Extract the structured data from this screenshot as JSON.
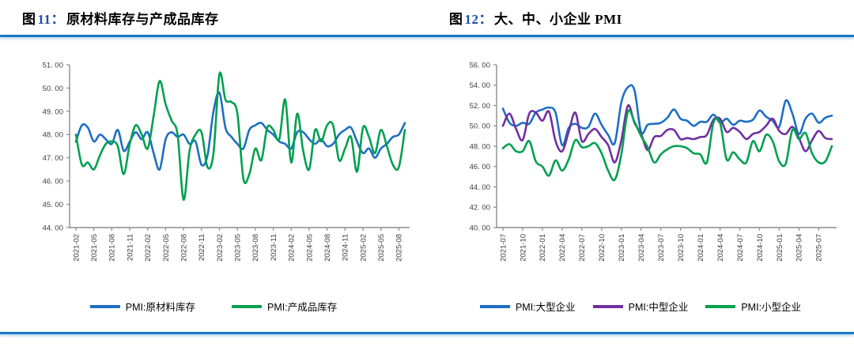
{
  "accent": {
    "divider_rule_color": "#1779c4",
    "title_number_color": "#1c4fa0"
  },
  "figures": [
    {
      "title_fig": "图",
      "title_num": "11：",
      "title_text": "原材料库存与产成品库存"
    },
    {
      "title_fig": "图",
      "title_num": "12：",
      "title_text": "大、中、小企业 PMI"
    }
  ],
  "chart_data": [
    {
      "type": "line",
      "title": "图 11：原材料库存与产成品库存",
      "grid": false,
      "legend_position": "bottom",
      "ylim": [
        44,
        51
      ],
      "y_ticks": [
        51,
        50,
        49,
        48,
        47,
        46,
        45,
        44
      ],
      "y_tick_labels": [
        "51. 00",
        "50. 00",
        "49. 00",
        "48. 00",
        "47. 00",
        "46. 00",
        "45. 00",
        "44. 00"
      ],
      "x_tick_every": 3,
      "x": [
        "2021-02",
        "2021-03",
        "2021-04",
        "2021-05",
        "2021-06",
        "2021-07",
        "2021-08",
        "2021-09",
        "2021-10",
        "2021-11",
        "2021-12",
        "2022-01",
        "2022-02",
        "2022-03",
        "2022-04",
        "2022-05",
        "2022-06",
        "2022-07",
        "2022-08",
        "2022-09",
        "2022-10",
        "2022-11",
        "2022-12",
        "2023-01",
        "2023-02",
        "2023-03",
        "2023-04",
        "2023-05",
        "2023-06",
        "2023-07",
        "2023-08",
        "2023-09",
        "2023-10",
        "2023-11",
        "2023-12",
        "2024-01",
        "2024-02",
        "2024-03",
        "2024-04",
        "2024-05",
        "2024-06",
        "2024-07",
        "2024-08",
        "2024-09",
        "2024-10",
        "2024-11",
        "2024-12",
        "2025-01",
        "2025-02",
        "2025-03",
        "2025-04",
        "2025-05",
        "2025-06",
        "2025-07",
        "2025-08",
        "2025-09"
      ],
      "series": [
        {
          "name": "PMI:原材料库存",
          "color": "#1c6fc4",
          "values": [
            47.7,
            48.4,
            48.3,
            47.7,
            48.0,
            47.8,
            47.6,
            48.2,
            47.3,
            47.7,
            48.1,
            47.8,
            48.1,
            47.2,
            46.5,
            47.8,
            48.1,
            47.9,
            48.0,
            47.6,
            47.7,
            46.7,
            47.1,
            49.0,
            49.8,
            48.3,
            47.9,
            47.6,
            47.4,
            48.2,
            48.4,
            48.5,
            48.2,
            48.0,
            47.7,
            47.6,
            47.4,
            48.1,
            48.1,
            47.8,
            47.6,
            47.8,
            47.5,
            47.6,
            48.0,
            48.2,
            48.3,
            47.7,
            47.2,
            47.4,
            47.0,
            47.4,
            47.6,
            47.9,
            48.0,
            48.5
          ]
        },
        {
          "name": "PMI:产成品库存",
          "color": "#00a050",
          "values": [
            48.0,
            46.7,
            46.8,
            46.5,
            47.1,
            47.6,
            47.7,
            47.5,
            46.3,
            47.6,
            48.4,
            48.0,
            47.4,
            48.8,
            50.3,
            49.3,
            48.6,
            48.0,
            45.2,
            47.3,
            48.0,
            48.1,
            46.6,
            47.2,
            50.6,
            49.5,
            49.4,
            48.9,
            46.1,
            46.3,
            47.4,
            46.9,
            48.3,
            48.2,
            47.8,
            49.5,
            46.8,
            48.9,
            47.3,
            46.5,
            48.2,
            47.7,
            48.4,
            48.4,
            46.9,
            47.4,
            47.9,
            46.4,
            48.3,
            47.9,
            47.2,
            48.2,
            47.5,
            46.7,
            46.6,
            48.2
          ]
        }
      ]
    },
    {
      "type": "line",
      "title": "图 12：大、中、小企业 PMI",
      "grid": false,
      "legend_position": "bottom",
      "ylim": [
        40,
        56
      ],
      "y_ticks": [
        56,
        54,
        52,
        50,
        48,
        46,
        44,
        42,
        40
      ],
      "y_tick_labels": [
        "56. 00",
        "54. 00",
        "52. 00",
        "50. 00",
        "48. 00",
        "46. 00",
        "44. 00",
        "42. 00",
        "40. 00"
      ],
      "x_tick_every": 3,
      "x": [
        "2021-07",
        "2021-08",
        "2021-09",
        "2021-10",
        "2021-11",
        "2021-12",
        "2022-01",
        "2022-02",
        "2022-03",
        "2022-04",
        "2022-05",
        "2022-06",
        "2022-07",
        "2022-08",
        "2022-09",
        "2022-10",
        "2022-11",
        "2022-12",
        "2023-01",
        "2023-02",
        "2023-03",
        "2023-04",
        "2023-05",
        "2023-06",
        "2023-07",
        "2023-08",
        "2023-09",
        "2023-10",
        "2023-11",
        "2023-12",
        "2024-01",
        "2024-02",
        "2024-03",
        "2024-04",
        "2024-05",
        "2024-06",
        "2024-07",
        "2024-08",
        "2024-09",
        "2024-10",
        "2024-11",
        "2024-12",
        "2025-01",
        "2025-02",
        "2025-03",
        "2025-04",
        "2025-05",
        "2025-06",
        "2025-07",
        "2025-08",
        "2025-09"
      ],
      "series": [
        {
          "name": "PMI:大型企业",
          "color": "#1c6fc4",
          "values": [
            51.7,
            50.3,
            50.0,
            50.3,
            50.2,
            51.3,
            51.6,
            51.8,
            51.3,
            48.1,
            49.8,
            50.2,
            49.8,
            49.9,
            51.2,
            50.1,
            49.1,
            48.3,
            52.3,
            53.8,
            53.5,
            49.4,
            50.1,
            50.2,
            50.3,
            50.8,
            51.6,
            50.7,
            50.5,
            50.0,
            50.4,
            50.4,
            51.1,
            50.3,
            50.7,
            50.1,
            50.5,
            50.4,
            50.6,
            51.5,
            50.9,
            50.5,
            49.9,
            52.5,
            51.2,
            49.2,
            50.7,
            51.2,
            50.3,
            50.8,
            51.0
          ]
        },
        {
          "name": "PMI:中型企业",
          "color": "#7030a0",
          "values": [
            50.0,
            51.2,
            49.7,
            48.6,
            51.2,
            51.3,
            50.5,
            51.4,
            48.5,
            47.5,
            49.4,
            51.3,
            48.5,
            49.2,
            49.7,
            48.9,
            48.1,
            46.4,
            48.6,
            52.0,
            50.3,
            49.2,
            47.6,
            48.9,
            49.0,
            49.6,
            49.6,
            48.7,
            48.8,
            48.7,
            48.9,
            49.1,
            50.6,
            50.7,
            49.4,
            49.8,
            49.4,
            48.7,
            49.2,
            49.4,
            50.0,
            50.7,
            49.5,
            49.2,
            49.9,
            48.8,
            47.5,
            48.6,
            49.5,
            48.8,
            48.7
          ]
        },
        {
          "name": "PMI:小型企业",
          "color": "#00a050",
          "values": [
            47.8,
            48.2,
            47.5,
            47.5,
            48.5,
            46.5,
            46.0,
            45.1,
            46.6,
            45.6,
            46.7,
            48.6,
            47.9,
            48.0,
            48.3,
            47.3,
            45.6,
            44.7,
            47.2,
            51.4,
            50.4,
            49.0,
            47.9,
            46.4,
            47.2,
            47.7,
            48.0,
            48.0,
            47.8,
            47.3,
            47.2,
            46.4,
            50.3,
            50.3,
            46.7,
            47.4,
            46.7,
            46.4,
            48.5,
            47.5,
            49.1,
            48.5,
            46.5,
            46.3,
            49.6,
            48.7,
            49.3,
            47.3,
            46.4,
            46.5,
            48.0
          ]
        }
      ]
    }
  ]
}
